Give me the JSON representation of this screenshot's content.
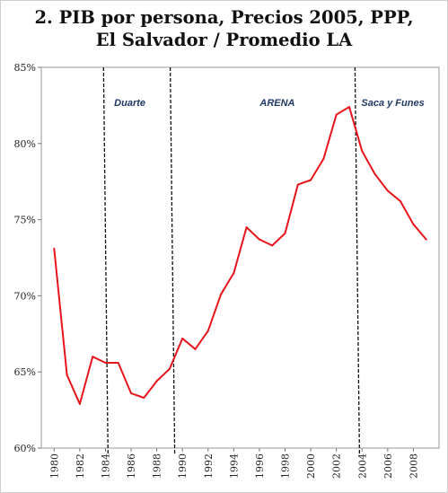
{
  "chart_data": {
    "type": "line",
    "title_lines": [
      "2. PIB por persona, Precios 2005, PPP,",
      "El Salvador / Promedio LA"
    ],
    "xlabel": "",
    "ylabel": "",
    "ylim": [
      60,
      85
    ],
    "xlim": [
      1979,
      2010
    ],
    "y_ticks": [
      "60%",
      "65%",
      "70%",
      "75%",
      "80%",
      "85%"
    ],
    "y_tick_values": [
      60,
      65,
      70,
      75,
      80,
      85
    ],
    "x_ticks": [
      "1980",
      "1982",
      "1984",
      "1986",
      "1988",
      "1990",
      "1992",
      "1994",
      "1996",
      "1998",
      "2000",
      "2002",
      "2004",
      "2006",
      "2008"
    ],
    "x_tick_values": [
      1980,
      1982,
      1984,
      1986,
      1988,
      1990,
      1992,
      1994,
      1996,
      1998,
      2000,
      2002,
      2004,
      2006,
      2008
    ],
    "grid": false,
    "legend": "none",
    "series": [
      {
        "color": "#e8141b",
        "x": [
          1980,
          1981,
          1982,
          1983,
          1984,
          1985,
          1986,
          1987,
          1988,
          1989,
          1990,
          1991,
          1992,
          1993,
          1994,
          1995,
          1996,
          1997,
          1998,
          1999,
          2000,
          2001,
          2002,
          2003,
          2004,
          2005,
          2006,
          2007,
          2008,
          2009
        ],
        "values": [
          73.1,
          64.8,
          62.9,
          66.0,
          65.6,
          65.6,
          63.6,
          63.3,
          64.4,
          65.2,
          67.2,
          66.5,
          67.7,
          70.1,
          71.5,
          74.5,
          73.7,
          73.3,
          74.1,
          77.3,
          77.6,
          79.0,
          81.9,
          82.4,
          79.5,
          78.0,
          76.9,
          76.2,
          74.7,
          73.7
        ]
      }
    ],
    "annotations": [
      {
        "text": "Duarte",
        "x": 1985.9,
        "y": 82.7
      },
      {
        "text": "ARENA",
        "x": 1997.4,
        "y": 82.7
      },
      {
        "text": "Saca y Funes",
        "x": 2006.4,
        "y": 82.7
      }
    ],
    "vertical_lines": [
      1984.2,
      1989.4,
      2003.8
    ]
  }
}
